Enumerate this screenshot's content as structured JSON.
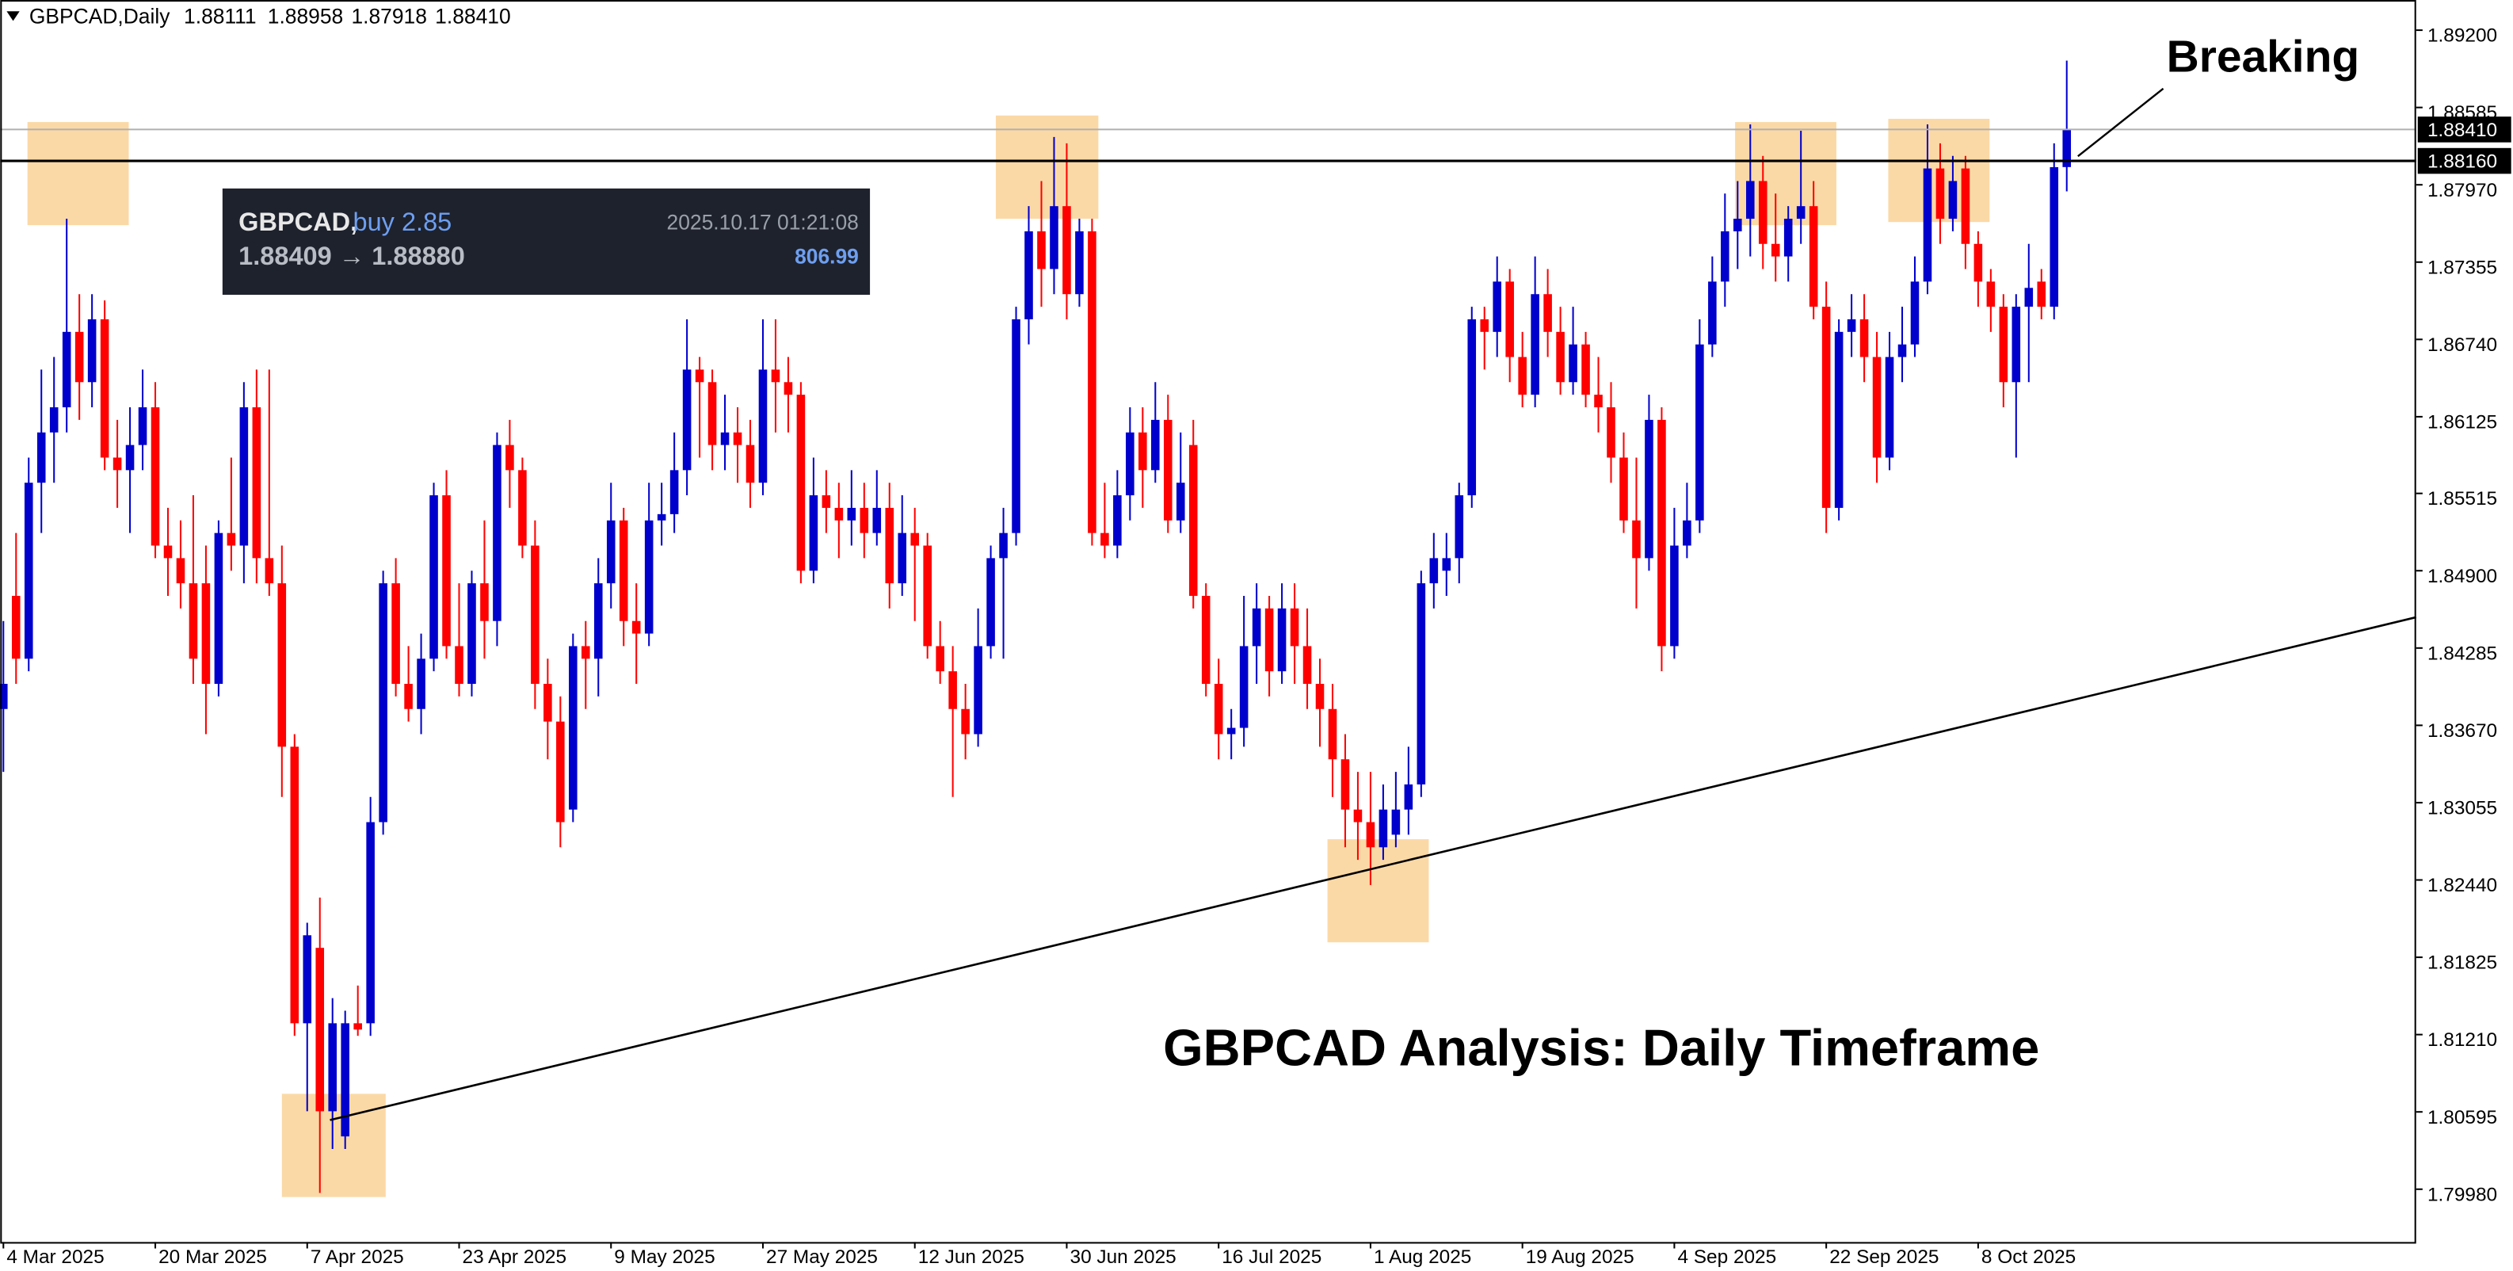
{
  "chart_data": {
    "type": "candlestick",
    "symbol": "GBPCAD,Daily",
    "header_values": [
      "1.88111",
      "1.88958",
      "1.87918",
      "1.88410"
    ],
    "title": "GBPCAD Analysis: Daily Timeframe",
    "annotation": "Breaking",
    "tooltip": {
      "symbol": "GBPCAD,",
      "side": "buy 2.85",
      "time": "2025.10.17 01:21:08",
      "prices": "1.88409 → 1.88880",
      "profit": "806.99"
    },
    "bull_color": "#0000cd",
    "bear_color": "#ff0000",
    "zone_color": "#fbd9a6",
    "xlim": [
      -0.25,
      190.6
    ],
    "ylim": [
      1.7956,
      1.8944
    ],
    "yticks": [
      {
        "value": 1.892,
        "label": "1.89200"
      },
      {
        "value": 1.88585,
        "label": "1.88585"
      },
      {
        "value": 1.8797,
        "label": "1.87970"
      },
      {
        "value": 1.87355,
        "label": "1.87355"
      },
      {
        "value": 1.8674,
        "label": "1.86740"
      },
      {
        "value": 1.86125,
        "label": "1.86125"
      },
      {
        "value": 1.85515,
        "label": "1.85515"
      },
      {
        "value": 1.849,
        "label": "1.84900"
      },
      {
        "value": 1.84285,
        "label": "1.84285"
      },
      {
        "value": 1.8367,
        "label": "1.83670"
      },
      {
        "value": 1.83055,
        "label": "1.83055"
      },
      {
        "value": 1.8244,
        "label": "1.82440"
      },
      {
        "value": 1.81825,
        "label": "1.81825"
      },
      {
        "value": 1.8121,
        "label": "1.81210"
      },
      {
        "value": 1.80595,
        "label": "1.80595"
      },
      {
        "value": 1.7998,
        "label": "1.79980"
      }
    ],
    "price_lines": [
      {
        "value": 1.8841,
        "label": "1.88410",
        "color": "#b0b0b0"
      },
      {
        "value": 1.8816,
        "label": "1.88160",
        "color": "#000000"
      }
    ],
    "trendline": [
      [
        25.8,
        1.8053
      ],
      [
        190.6,
        1.8453
      ]
    ],
    "zones": [
      [
        1.9,
        9.9,
        1.87649,
        1.88469
      ],
      [
        78.4,
        86.5,
        1.877,
        1.88521
      ],
      [
        104.6,
        112.6,
        1.81944,
        1.82764
      ],
      [
        22.0,
        30.2,
        1.79918,
        1.80739
      ],
      [
        136.8,
        144.8,
        1.87649,
        1.88469
      ],
      [
        148.9,
        156.9,
        1.87674,
        1.88495
      ]
    ],
    "categories": [
      "4 Mar 2025",
      null,
      null,
      null,
      null,
      null,
      null,
      null,
      null,
      null,
      null,
      null,
      "20 Mar 2025",
      null,
      null,
      null,
      null,
      null,
      null,
      null,
      null,
      null,
      null,
      null,
      "7 Apr 2025",
      null,
      null,
      null,
      null,
      null,
      null,
      null,
      null,
      null,
      null,
      null,
      "23 Apr 2025",
      null,
      null,
      null,
      null,
      null,
      null,
      null,
      null,
      null,
      null,
      null,
      "9 May 2025",
      null,
      null,
      null,
      null,
      null,
      null,
      null,
      null,
      null,
      null,
      null,
      "27 May 2025",
      null,
      null,
      null,
      null,
      null,
      null,
      null,
      null,
      null,
      null,
      null,
      "12 Jun 2025",
      null,
      null,
      null,
      null,
      null,
      null,
      null,
      null,
      null,
      null,
      null,
      "30 Jun 2025",
      null,
      null,
      null,
      null,
      null,
      null,
      null,
      null,
      null,
      null,
      null,
      "16 Jul 2025",
      null,
      null,
      null,
      null,
      null,
      null,
      null,
      null,
      null,
      null,
      null,
      "1 Aug 2025",
      null,
      null,
      null,
      null,
      null,
      null,
      null,
      null,
      null,
      null,
      null,
      "19 Aug 2025",
      null,
      null,
      null,
      null,
      null,
      null,
      null,
      null,
      null,
      null,
      null,
      "4 Sep 2025",
      null,
      null,
      null,
      null,
      null,
      null,
      null,
      null,
      null,
      null,
      null,
      "22 Sep 2025",
      null,
      null,
      null,
      null,
      null,
      null,
      null,
      null,
      null,
      null,
      null,
      "8 Oct 2025",
      null,
      null,
      null,
      null,
      null,
      null,
      null
    ],
    "ohlc": [
      [
        1.838,
        1.845,
        1.833,
        1.84
      ],
      [
        1.847,
        1.852,
        1.84,
        1.842
      ],
      [
        1.842,
        1.858,
        1.841,
        1.856
      ],
      [
        1.856,
        1.865,
        1.852,
        1.86
      ],
      [
        1.86,
        1.866,
        1.856,
        1.862
      ],
      [
        1.862,
        1.877,
        1.86,
        1.868
      ],
      [
        1.868,
        1.871,
        1.861,
        1.864
      ],
      [
        1.864,
        1.871,
        1.862,
        1.869
      ],
      [
        1.869,
        1.8705,
        1.857,
        1.858
      ],
      [
        1.858,
        1.861,
        1.854,
        1.857
      ],
      [
        1.857,
        1.862,
        1.852,
        1.859
      ],
      [
        1.859,
        1.865,
        1.857,
        1.862
      ],
      [
        1.862,
        1.864,
        1.85,
        1.851
      ],
      [
        1.851,
        1.854,
        1.847,
        1.85
      ],
      [
        1.85,
        1.853,
        1.846,
        1.848
      ],
      [
        1.848,
        1.855,
        1.84,
        1.842
      ],
      [
        1.848,
        1.851,
        1.836,
        1.84
      ],
      [
        1.84,
        1.853,
        1.839,
        1.852
      ],
      [
        1.852,
        1.858,
        1.849,
        1.851
      ],
      [
        1.851,
        1.864,
        1.848,
        1.862
      ],
      [
        1.862,
        1.865,
        1.848,
        1.85
      ],
      [
        1.85,
        1.865,
        1.847,
        1.848
      ],
      [
        1.848,
        1.851,
        1.831,
        1.835
      ],
      [
        1.835,
        1.836,
        1.812,
        1.813
      ],
      [
        1.813,
        1.821,
        1.806,
        1.82
      ],
      [
        1.819,
        1.823,
        1.7995,
        1.806
      ],
      [
        1.806,
        1.815,
        1.803,
        1.813
      ],
      [
        1.804,
        1.814,
        1.803,
        1.813
      ],
      [
        1.813,
        1.816,
        1.812,
        1.8125
      ],
      [
        1.813,
        1.831,
        1.812,
        1.829
      ],
      [
        1.829,
        1.849,
        1.828,
        1.848
      ],
      [
        1.848,
        1.85,
        1.839,
        1.84
      ],
      [
        1.84,
        1.843,
        1.837,
        1.838
      ],
      [
        1.838,
        1.844,
        1.836,
        1.842
      ],
      [
        1.842,
        1.856,
        1.841,
        1.855
      ],
      [
        1.855,
        1.857,
        1.842,
        1.843
      ],
      [
        1.843,
        1.848,
        1.839,
        1.84
      ],
      [
        1.84,
        1.849,
        1.839,
        1.848
      ],
      [
        1.848,
        1.853,
        1.842,
        1.845
      ],
      [
        1.845,
        1.86,
        1.843,
        1.859
      ],
      [
        1.859,
        1.861,
        1.854,
        1.857
      ],
      [
        1.857,
        1.858,
        1.85,
        1.851
      ],
      [
        1.851,
        1.853,
        1.838,
        1.84
      ],
      [
        1.84,
        1.842,
        1.834,
        1.837
      ],
      [
        1.837,
        1.839,
        1.827,
        1.829
      ],
      [
        1.83,
        1.844,
        1.829,
        1.843
      ],
      [
        1.843,
        1.845,
        1.838,
        1.842
      ],
      [
        1.842,
        1.85,
        1.839,
        1.848
      ],
      [
        1.848,
        1.856,
        1.846,
        1.853
      ],
      [
        1.853,
        1.854,
        1.843,
        1.845
      ],
      [
        1.845,
        1.848,
        1.84,
        1.844
      ],
      [
        1.844,
        1.856,
        1.843,
        1.853
      ],
      [
        1.853,
        1.856,
        1.851,
        1.8535
      ],
      [
        1.8535,
        1.86,
        1.852,
        1.857
      ],
      [
        1.857,
        1.869,
        1.855,
        1.865
      ],
      [
        1.865,
        1.866,
        1.858,
        1.864
      ],
      [
        1.864,
        1.865,
        1.857,
        1.859
      ],
      [
        1.859,
        1.863,
        1.857,
        1.86
      ],
      [
        1.86,
        1.862,
        1.856,
        1.859
      ],
      [
        1.859,
        1.861,
        1.854,
        1.856
      ],
      [
        1.856,
        1.869,
        1.855,
        1.865
      ],
      [
        1.865,
        1.869,
        1.86,
        1.864
      ],
      [
        1.864,
        1.866,
        1.86,
        1.863
      ],
      [
        1.863,
        1.864,
        1.848,
        1.849
      ],
      [
        1.849,
        1.858,
        1.848,
        1.855
      ],
      [
        1.855,
        1.857,
        1.852,
        1.854
      ],
      [
        1.854,
        1.856,
        1.85,
        1.853
      ],
      [
        1.853,
        1.857,
        1.851,
        1.854
      ],
      [
        1.854,
        1.856,
        1.85,
        1.852
      ],
      [
        1.852,
        1.857,
        1.851,
        1.854
      ],
      [
        1.854,
        1.856,
        1.846,
        1.848
      ],
      [
        1.848,
        1.855,
        1.847,
        1.852
      ],
      [
        1.852,
        1.854,
        1.845,
        1.851
      ],
      [
        1.851,
        1.852,
        1.842,
        1.843
      ],
      [
        1.843,
        1.845,
        1.84,
        1.841
      ],
      [
        1.841,
        1.843,
        1.831,
        1.838
      ],
      [
        1.838,
        1.84,
        1.834,
        1.836
      ],
      [
        1.836,
        1.846,
        1.835,
        1.843
      ],
      [
        1.843,
        1.851,
        1.842,
        1.85
      ],
      [
        1.85,
        1.854,
        1.842,
        1.852
      ],
      [
        1.852,
        1.87,
        1.851,
        1.869
      ],
      [
        1.869,
        1.878,
        1.867,
        1.876
      ],
      [
        1.876,
        1.88,
        1.87,
        1.873
      ],
      [
        1.873,
        1.8835,
        1.871,
        1.878
      ],
      [
        1.878,
        1.883,
        1.869,
        1.871
      ],
      [
        1.871,
        1.877,
        1.87,
        1.876
      ],
      [
        1.876,
        1.877,
        1.851,
        1.852
      ],
      [
        1.852,
        1.856,
        1.85,
        1.851
      ],
      [
        1.851,
        1.857,
        1.85,
        1.855
      ],
      [
        1.855,
        1.862,
        1.853,
        1.86
      ],
      [
        1.86,
        1.862,
        1.854,
        1.857
      ],
      [
        1.857,
        1.864,
        1.856,
        1.861
      ],
      [
        1.861,
        1.863,
        1.852,
        1.853
      ],
      [
        1.853,
        1.86,
        1.852,
        1.856
      ],
      [
        1.859,
        1.861,
        1.846,
        1.847
      ],
      [
        1.847,
        1.848,
        1.839,
        1.84
      ],
      [
        1.84,
        1.842,
        1.834,
        1.836
      ],
      [
        1.836,
        1.838,
        1.834,
        1.8365
      ],
      [
        1.8365,
        1.847,
        1.835,
        1.843
      ],
      [
        1.843,
        1.848,
        1.84,
        1.846
      ],
      [
        1.846,
        1.847,
        1.839,
        1.841
      ],
      [
        1.841,
        1.848,
        1.84,
        1.846
      ],
      [
        1.846,
        1.848,
        1.84,
        1.843
      ],
      [
        1.843,
        1.846,
        1.838,
        1.84
      ],
      [
        1.84,
        1.842,
        1.835,
        1.838
      ],
      [
        1.838,
        1.84,
        1.831,
        1.834
      ],
      [
        1.834,
        1.836,
        1.827,
        1.83
      ],
      [
        1.83,
        1.833,
        1.826,
        1.829
      ],
      [
        1.829,
        1.833,
        1.824,
        1.827
      ],
      [
        1.827,
        1.832,
        1.826,
        1.83
      ],
      [
        1.828,
        1.833,
        1.827,
        1.83
      ],
      [
        1.83,
        1.835,
        1.828,
        1.832
      ],
      [
        1.832,
        1.849,
        1.831,
        1.848
      ],
      [
        1.848,
        1.852,
        1.846,
        1.85
      ],
      [
        1.849,
        1.852,
        1.847,
        1.85
      ],
      [
        1.85,
        1.856,
        1.848,
        1.855
      ],
      [
        1.855,
        1.87,
        1.854,
        1.869
      ],
      [
        1.869,
        1.87,
        1.865,
        1.868
      ],
      [
        1.868,
        1.874,
        1.866,
        1.872
      ],
      [
        1.872,
        1.873,
        1.864,
        1.866
      ],
      [
        1.866,
        1.868,
        1.862,
        1.863
      ],
      [
        1.863,
        1.874,
        1.862,
        1.871
      ],
      [
        1.871,
        1.873,
        1.866,
        1.868
      ],
      [
        1.868,
        1.87,
        1.863,
        1.864
      ],
      [
        1.864,
        1.87,
        1.863,
        1.867
      ],
      [
        1.867,
        1.868,
        1.862,
        1.863
      ],
      [
        1.863,
        1.866,
        1.86,
        1.862
      ],
      [
        1.862,
        1.864,
        1.856,
        1.858
      ],
      [
        1.858,
        1.86,
        1.852,
        1.853
      ],
      [
        1.853,
        1.858,
        1.846,
        1.85
      ],
      [
        1.85,
        1.863,
        1.849,
        1.861
      ],
      [
        1.861,
        1.862,
        1.841,
        1.843
      ],
      [
        1.843,
        1.854,
        1.842,
        1.851
      ],
      [
        1.851,
        1.856,
        1.85,
        1.853
      ],
      [
        1.853,
        1.869,
        1.852,
        1.867
      ],
      [
        1.867,
        1.874,
        1.866,
        1.872
      ],
      [
        1.872,
        1.879,
        1.87,
        1.876
      ],
      [
        1.876,
        1.88,
        1.873,
        1.877
      ],
      [
        1.877,
        1.8845,
        1.874,
        1.88
      ],
      [
        1.88,
        1.882,
        1.873,
        1.875
      ],
      [
        1.875,
        1.879,
        1.872,
        1.874
      ],
      [
        1.874,
        1.878,
        1.872,
        1.877
      ],
      [
        1.877,
        1.884,
        1.875,
        1.878
      ],
      [
        1.878,
        1.88,
        1.869,
        1.87
      ],
      [
        1.87,
        1.872,
        1.852,
        1.854
      ],
      [
        1.854,
        1.869,
        1.853,
        1.868
      ],
      [
        1.868,
        1.871,
        1.866,
        1.869
      ],
      [
        1.869,
        1.871,
        1.864,
        1.866
      ],
      [
        1.866,
        1.868,
        1.856,
        1.858
      ],
      [
        1.858,
        1.868,
        1.857,
        1.866
      ],
      [
        1.866,
        1.87,
        1.864,
        1.867
      ],
      [
        1.867,
        1.874,
        1.866,
        1.872
      ],
      [
        1.872,
        1.8845,
        1.871,
        1.881
      ],
      [
        1.881,
        1.883,
        1.875,
        1.877
      ],
      [
        1.877,
        1.882,
        1.876,
        1.88
      ],
      [
        1.881,
        1.882,
        1.873,
        1.875
      ],
      [
        1.875,
        1.876,
        1.87,
        1.872
      ],
      [
        1.872,
        1.873,
        1.868,
        1.87
      ],
      [
        1.87,
        1.871,
        1.862,
        1.864
      ],
      [
        1.864,
        1.871,
        1.858,
        1.87
      ],
      [
        1.87,
        1.875,
        1.864,
        1.8715
      ],
      [
        1.872,
        1.873,
        1.869,
        1.87
      ],
      [
        1.87,
        1.883,
        1.869,
        1.8811
      ],
      [
        1.88111,
        1.88958,
        1.87918,
        1.8841
      ]
    ]
  }
}
